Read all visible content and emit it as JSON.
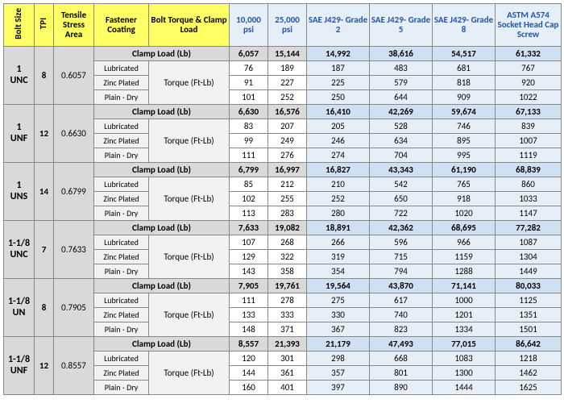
{
  "headers": {
    "bolt_size": "Bolt Size",
    "tpi": "TPI",
    "tsa": "Tensile Stress Area",
    "coating": "Fastener Coating",
    "btcl": "Bolt Torque & Clamp Load",
    "psi10": "10,000 psi",
    "psi25": "25,000 psi",
    "g2": "SAE J429- Grade 2",
    "g5": "SAE J429- Grade 5",
    "g8": "SAE J429- Grade 8",
    "a574": "ASTM A574 Socket Head Cap Screw"
  },
  "row_labels": {
    "clamp": "Clamp Load (Lb)",
    "torque": "Torque (Ft-Lb)",
    "lub": "Lubricated",
    "zinc": "Zinc Plated",
    "dry": "Plain - Dry"
  },
  "groups": [
    {
      "size": "1 UNC",
      "tpi": "8",
      "tsa": "0.6057",
      "clamp": [
        "6,057",
        "15,144",
        "14,992",
        "38,616",
        "54,517",
        "61,332"
      ],
      "lub": [
        "76",
        "189",
        "187",
        "483",
        "681",
        "767"
      ],
      "zinc": [
        "91",
        "227",
        "225",
        "579",
        "818",
        "920"
      ],
      "dry": [
        "101",
        "252",
        "250",
        "644",
        "909",
        "1022"
      ]
    },
    {
      "size": "1 UNF",
      "tpi": "12",
      "tsa": "0.6630",
      "clamp": [
        "6,630",
        "16,576",
        "16,410",
        "42,269",
        "59,674",
        "67,133"
      ],
      "lub": [
        "83",
        "207",
        "205",
        "528",
        "746",
        "839"
      ],
      "zinc": [
        "99",
        "249",
        "246",
        "634",
        "895",
        "1007"
      ],
      "dry": [
        "111",
        "276",
        "274",
        "704",
        "995",
        "1119"
      ]
    },
    {
      "size": "1 UNS",
      "tpi": "14",
      "tsa": "0.6799",
      "clamp": [
        "6,799",
        "16,997",
        "16,827",
        "43,343",
        "61,190",
        "68,839"
      ],
      "lub": [
        "85",
        "212",
        "210",
        "542",
        "765",
        "860"
      ],
      "zinc": [
        "102",
        "255",
        "252",
        "650",
        "918",
        "1033"
      ],
      "dry": [
        "113",
        "283",
        "280",
        "722",
        "1020",
        "1147"
      ]
    },
    {
      "size": "1-1/8 UNC",
      "tpi": "7",
      "tsa": "0.7633",
      "clamp": [
        "7,633",
        "19,082",
        "18,891",
        "42,362",
        "68,695",
        "77,282"
      ],
      "lub": [
        "107",
        "268",
        "266",
        "596",
        "966",
        "1087"
      ],
      "zinc": [
        "129",
        "322",
        "319",
        "715",
        "1159",
        "1304"
      ],
      "dry": [
        "143",
        "358",
        "354",
        "794",
        "1288",
        "1449"
      ]
    },
    {
      "size": "1-1/8 UN",
      "tpi": "8",
      "tsa": "0.7905",
      "clamp": [
        "7,905",
        "19,761",
        "19,564",
        "43,870",
        "71,141",
        "80,033"
      ],
      "lub": [
        "111",
        "278",
        "275",
        "617",
        "1000",
        "1125"
      ],
      "zinc": [
        "133",
        "333",
        "330",
        "740",
        "1201",
        "1351"
      ],
      "dry": [
        "148",
        "371",
        "367",
        "823",
        "1334",
        "1501"
      ]
    },
    {
      "size": "1-1/8 UNF",
      "tpi": "12",
      "tsa": "0.8557",
      "clamp": [
        "8,557",
        "21,393",
        "21,179",
        "47,493",
        "77,015",
        "86,642"
      ],
      "lub": [
        "120",
        "301",
        "298",
        "668",
        "1083",
        "1218"
      ],
      "zinc": [
        "144",
        "361",
        "357",
        "801",
        "1300",
        "1462"
      ],
      "dry": [
        "160",
        "401",
        "397",
        "890",
        "1444",
        "1625"
      ]
    }
  ]
}
